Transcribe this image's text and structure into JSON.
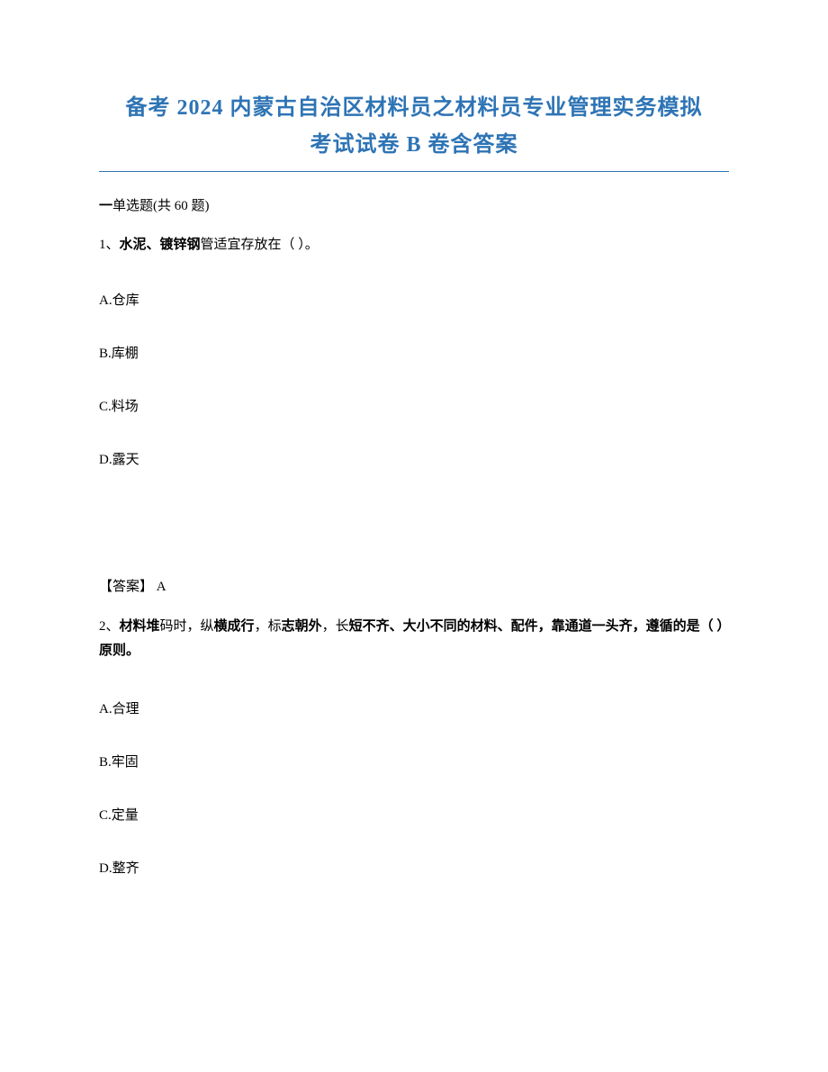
{
  "title_line1": "备考 2024 内蒙古自治区材料员之材料员专业管理实务模拟",
  "title_line2": "考试试卷 B 卷含答案",
  "section_header_prefix": "一",
  "section_header_text": "单选题(共 60 题)",
  "q1": {
    "number_label": "1、",
    "stem_bold_a": "水泥、镀锌钢",
    "stem_plain": "管适宜存放在（ ）。",
    "options": {
      "A": "A.仓库",
      "B": "B.库棚",
      "C": "C.料场",
      "D": "D.露天"
    },
    "answer_label": "【答案】",
    "answer_value": " A"
  },
  "q2": {
    "number_label": "2、",
    "stem_bold_a": "材料堆",
    "stem_plain_a": "码时，纵",
    "stem_bold_b": "横成行",
    "stem_plain_b": "，标",
    "stem_bold_c": "志朝外",
    "stem_plain_c": "，长",
    "stem_bold_d": "短不齐、大小不同的材料、配件，靠通道一头齐，遵循的是（ ）原则。",
    "options": {
      "A": "A.合理",
      "B": "B.牢固",
      "C": "C.定量",
      "D": "D.整齐"
    }
  }
}
